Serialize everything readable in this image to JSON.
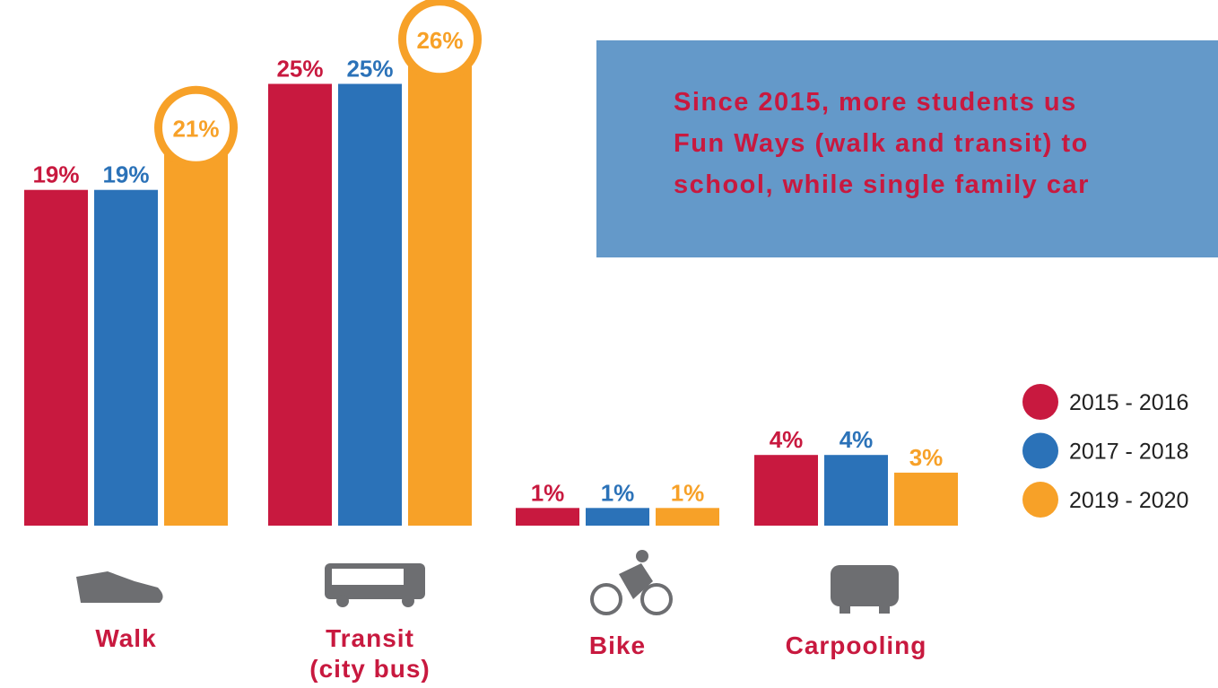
{
  "chart_data": {
    "type": "bar",
    "categories": [
      "Walk",
      "Transit\n(city bus)",
      "Bike",
      "Carpooling"
    ],
    "series": [
      {
        "name": "2015 - 2016",
        "color": "#c8193f",
        "values": [
          19,
          25,
          1,
          4
        ],
        "value_labels": [
          "19%",
          "25%",
          "1%",
          "4%"
        ]
      },
      {
        "name": "2017 - 2018",
        "color": "#2b72b8",
        "values": [
          19,
          25,
          1,
          4
        ],
        "value_labels": [
          "19%",
          "25%",
          "1%",
          "4%"
        ]
      },
      {
        "name": "2019 - 2020",
        "color": "#f7a128",
        "values": [
          21,
          26,
          1,
          3
        ],
        "value_labels": [
          "21%",
          "26%",
          "1%",
          "3%"
        ]
      }
    ],
    "ylim": [
      0,
      30
    ],
    "annotation": [
      "Since 2015, more students us",
      "Fun Ways (walk and transit) to",
      "school, while single family car"
    ]
  }
}
